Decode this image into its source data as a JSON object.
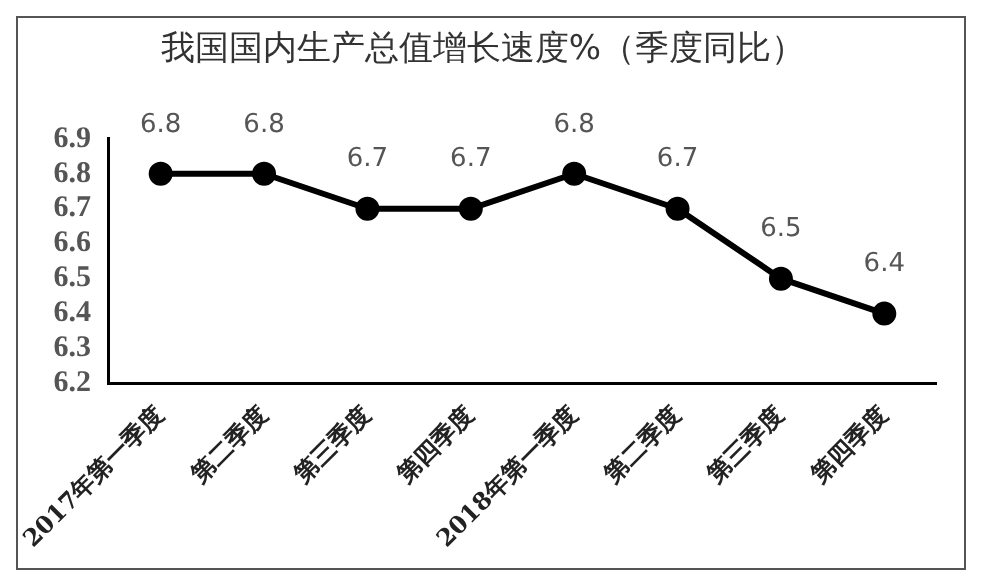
{
  "chart_data": {
    "type": "line",
    "title": "我国国内生产总值增长速度%（季度同比）",
    "categories": [
      "2017年第一季度",
      "第二季度",
      "第三季度",
      "第四季度",
      "2018年第一季度",
      "第二季度",
      "第三季度",
      "第四季度"
    ],
    "series": [
      {
        "color": "#000000",
        "values": [
          6.8,
          6.8,
          6.7,
          6.7,
          6.8,
          6.7,
          6.5,
          6.4
        ]
      }
    ],
    "ylim": [
      6.2,
      6.9
    ],
    "yticks": [
      6.2,
      6.3,
      6.4,
      6.5,
      6.6,
      6.7,
      6.8,
      6.9
    ],
    "grid": false,
    "legend": false,
    "marker": "circle",
    "line_style": "solid",
    "data_labels": true
  }
}
